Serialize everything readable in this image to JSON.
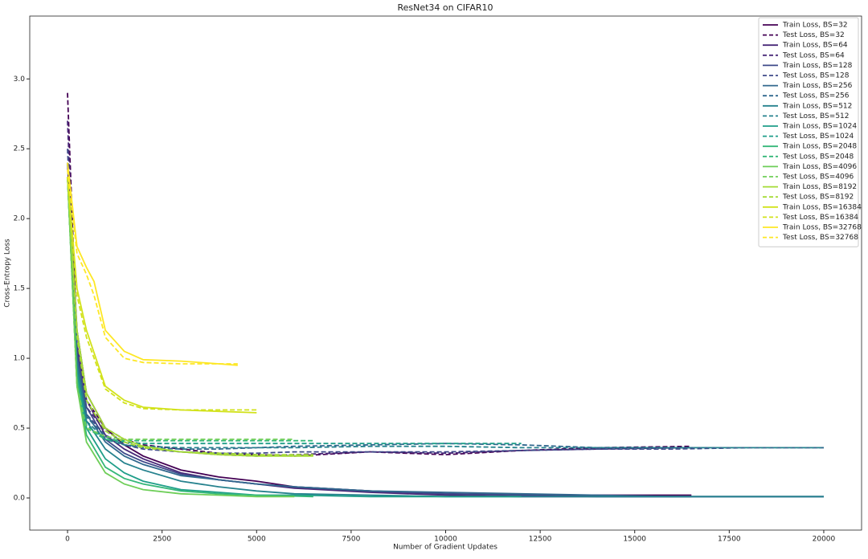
{
  "chart_data": {
    "type": "line",
    "title": "ResNet34 on CIFAR10",
    "x_label": "Number of Gradient Updates",
    "y_label": "Cross-Entropy Loss",
    "xlim": [
      -1000,
      21000
    ],
    "ylim": [
      -0.23,
      3.45
    ],
    "xticks": [
      0,
      2500,
      5000,
      7500,
      10000,
      12500,
      15000,
      17500,
      20000
    ],
    "yticks": [
      {
        "value": 0,
        "label": "0.0"
      },
      0.5,
      {
        "value": 1,
        "label": "1.0"
      },
      1.5,
      {
        "value": 2,
        "label": "2.0"
      },
      2.5,
      {
        "value": 3,
        "label": "3.0"
      }
    ],
    "grid": false,
    "legend": "upper right",
    "series": [
      {
        "name": "Train Loss, BS=32",
        "color": "#440154",
        "linestyle": "solid",
        "x": [
          0,
          250,
          500,
          1000,
          1500,
          2000,
          3000,
          4000,
          5000,
          6000,
          8000,
          10000,
          12000,
          14000,
          16500
        ],
        "values": [
          2.4,
          1.2,
          0.75,
          0.5,
          0.38,
          0.3,
          0.2,
          0.15,
          0.12,
          0.08,
          0.05,
          0.03,
          0.02,
          0.02,
          0.02
        ]
      },
      {
        "name": "Test Loss, BS=32",
        "color": "#440154",
        "linestyle": "dashed",
        "x": [
          0,
          250,
          500,
          1000,
          1500,
          2000,
          3000,
          4000,
          5000,
          6000,
          8000,
          10000,
          12000,
          14000,
          16500
        ],
        "values": [
          2.9,
          1.1,
          0.7,
          0.5,
          0.42,
          0.38,
          0.35,
          0.32,
          0.31,
          0.3,
          0.33,
          0.31,
          0.34,
          0.36,
          0.37
        ]
      },
      {
        "name": "Train Loss, BS=64",
        "color": "#482878",
        "linestyle": "solid",
        "x": [
          0,
          250,
          500,
          1000,
          1500,
          2000,
          3000,
          4000,
          5000,
          6000,
          8000,
          10000,
          12000,
          14000,
          16500
        ],
        "values": [
          2.3,
          1.1,
          0.7,
          0.45,
          0.35,
          0.28,
          0.18,
          0.13,
          0.1,
          0.07,
          0.04,
          0.02,
          0.01,
          0.01,
          0.01
        ]
      },
      {
        "name": "Test Loss, BS=64",
        "color": "#482878",
        "linestyle": "dashed",
        "x": [
          0,
          250,
          500,
          1000,
          1500,
          2000,
          3000,
          4000,
          5000,
          6000,
          8000,
          10000,
          12000,
          14000,
          16500
        ],
        "values": [
          2.7,
          1.0,
          0.65,
          0.48,
          0.4,
          0.36,
          0.33,
          0.31,
          0.3,
          0.31,
          0.33,
          0.32,
          0.34,
          0.35,
          0.36
        ]
      },
      {
        "name": "Train Loss, BS=128",
        "color": "#3e4989",
        "linestyle": "solid",
        "x": [
          0,
          250,
          500,
          1000,
          1500,
          2000,
          3000,
          4000,
          5000,
          6000,
          8000,
          10000,
          12000,
          14000,
          16000,
          18000,
          20000
        ],
        "values": [
          2.3,
          1.05,
          0.65,
          0.42,
          0.32,
          0.26,
          0.17,
          0.13,
          0.1,
          0.08,
          0.05,
          0.03,
          0.02,
          0.01,
          0.01,
          0.01,
          0.01
        ]
      },
      {
        "name": "Test Loss, BS=128",
        "color": "#3e4989",
        "linestyle": "dashed",
        "x": [
          0,
          250,
          500,
          1000,
          1500,
          2000,
          3000,
          4000,
          5000,
          6000,
          8000,
          10000,
          12000,
          14000,
          16000,
          18000,
          20000
        ],
        "values": [
          2.5,
          1.0,
          0.6,
          0.45,
          0.38,
          0.35,
          0.33,
          0.32,
          0.32,
          0.33,
          0.33,
          0.33,
          0.34,
          0.35,
          0.35,
          0.36,
          0.36
        ]
      },
      {
        "name": "Train Loss, BS=256",
        "color": "#31688e",
        "linestyle": "solid",
        "x": [
          0,
          250,
          500,
          1000,
          1500,
          2000,
          3000,
          4000,
          5000,
          6000,
          8000,
          10000,
          12000,
          14000,
          16000,
          18000,
          20000
        ],
        "values": [
          2.3,
          1.0,
          0.6,
          0.4,
          0.3,
          0.24,
          0.16,
          0.13,
          0.1,
          0.08,
          0.05,
          0.04,
          0.03,
          0.02,
          0.01,
          0.01,
          0.01
        ]
      },
      {
        "name": "Test Loss, BS=256",
        "color": "#31688e",
        "linestyle": "dashed",
        "x": [
          0,
          250,
          500,
          1000,
          1500,
          2000,
          3000,
          4000,
          5000,
          6000,
          8000,
          10000,
          12000,
          14000,
          16000,
          18000,
          20000
        ],
        "values": [
          2.4,
          0.95,
          0.58,
          0.44,
          0.38,
          0.36,
          0.35,
          0.35,
          0.36,
          0.37,
          0.38,
          0.39,
          0.38,
          0.36,
          0.36,
          0.36,
          0.36
        ]
      },
      {
        "name": "Train Loss, BS=512",
        "color": "#26828e",
        "linestyle": "solid",
        "x": [
          0,
          250,
          500,
          1000,
          1500,
          2000,
          3000,
          4000,
          5000,
          6000,
          8000,
          10000,
          12000,
          14000,
          16000,
          18000,
          20000
        ],
        "values": [
          2.3,
          0.95,
          0.55,
          0.35,
          0.25,
          0.2,
          0.12,
          0.08,
          0.05,
          0.03,
          0.02,
          0.01,
          0.01,
          0.01,
          0.01,
          0.01,
          0.01
        ]
      },
      {
        "name": "Test Loss, BS=512",
        "color": "#26828e",
        "linestyle": "dashed",
        "x": [
          0,
          250,
          500,
          1000,
          1500,
          2000,
          3000,
          4000,
          5000,
          6000,
          8000,
          10000,
          12000,
          14000,
          16000,
          18000,
          20000
        ],
        "values": [
          2.3,
          0.9,
          0.55,
          0.42,
          0.38,
          0.37,
          0.36,
          0.36,
          0.36,
          0.36,
          0.37,
          0.37,
          0.36,
          0.36,
          0.36,
          0.36,
          0.36
        ]
      },
      {
        "name": "Train Loss, BS=1024",
        "color": "#1f9e89",
        "linestyle": "solid",
        "x": [
          0,
          250,
          500,
          1000,
          1500,
          2000,
          3000,
          4000,
          5000,
          6000,
          8000,
          10000,
          12000
        ],
        "values": [
          2.3,
          0.9,
          0.5,
          0.28,
          0.18,
          0.12,
          0.06,
          0.04,
          0.02,
          0.02,
          0.01,
          0.01,
          0.01
        ]
      },
      {
        "name": "Test Loss, BS=1024",
        "color": "#1f9e89",
        "linestyle": "dashed",
        "x": [
          0,
          250,
          500,
          1000,
          1500,
          2000,
          3000,
          4000,
          5000,
          6000,
          8000,
          10000,
          12000
        ],
        "values": [
          2.3,
          0.85,
          0.52,
          0.42,
          0.4,
          0.39,
          0.39,
          0.39,
          0.39,
          0.39,
          0.39,
          0.39,
          0.39
        ]
      },
      {
        "name": "Train Loss, BS=2048",
        "color": "#35b779",
        "linestyle": "solid",
        "x": [
          0,
          250,
          500,
          1000,
          1500,
          2000,
          3000,
          4000,
          5000,
          6500
        ],
        "values": [
          2.3,
          0.85,
          0.45,
          0.22,
          0.14,
          0.1,
          0.05,
          0.03,
          0.02,
          0.01
        ]
      },
      {
        "name": "Test Loss, BS=2048",
        "color": "#35b779",
        "linestyle": "dashed",
        "x": [
          0,
          250,
          500,
          1000,
          1500,
          2000,
          3000,
          4000,
          5000,
          6500
        ],
        "values": [
          2.3,
          0.8,
          0.5,
          0.42,
          0.41,
          0.41,
          0.41,
          0.41,
          0.41,
          0.41
        ]
      },
      {
        "name": "Train Loss, BS=4096",
        "color": "#6ece58",
        "linestyle": "solid",
        "x": [
          0,
          250,
          500,
          1000,
          1500,
          2000,
          3000,
          4000,
          5000,
          6000
        ],
        "values": [
          2.3,
          0.8,
          0.4,
          0.18,
          0.1,
          0.06,
          0.03,
          0.02,
          0.01,
          0.01
        ]
      },
      {
        "name": "Test Loss, BS=4096",
        "color": "#6ece58",
        "linestyle": "dashed",
        "x": [
          0,
          250,
          500,
          1000,
          1500,
          2000,
          3000,
          4000,
          5000,
          6000
        ],
        "values": [
          2.3,
          0.8,
          0.5,
          0.44,
          0.42,
          0.42,
          0.42,
          0.42,
          0.42,
          0.42
        ]
      },
      {
        "name": "Train Loss, BS=8192",
        "color": "#a5db36",
        "linestyle": "solid",
        "x": [
          0,
          250,
          500,
          1000,
          1500,
          2000,
          3000,
          4000,
          5000,
          6500
        ],
        "values": [
          2.3,
          1.2,
          0.75,
          0.5,
          0.42,
          0.37,
          0.33,
          0.31,
          0.3,
          0.3
        ]
      },
      {
        "name": "Test Loss, BS=8192",
        "color": "#a5db36",
        "linestyle": "dashed",
        "x": [
          0,
          250,
          500,
          1000,
          1500,
          2000,
          3000,
          4000,
          5000,
          6500
        ],
        "values": [
          2.3,
          1.15,
          0.7,
          0.48,
          0.4,
          0.36,
          0.33,
          0.32,
          0.31,
          0.31
        ]
      },
      {
        "name": "Train Loss, BS=16384",
        "color": "#d2e21b",
        "linestyle": "solid",
        "x": [
          0,
          250,
          500,
          1000,
          1500,
          2000,
          3000,
          4000,
          5000
        ],
        "values": [
          2.3,
          1.5,
          1.2,
          0.8,
          0.7,
          0.65,
          0.63,
          0.62,
          0.61
        ]
      },
      {
        "name": "Test Loss, BS=16384",
        "color": "#d2e21b",
        "linestyle": "dashed",
        "x": [
          0,
          250,
          500,
          1000,
          1500,
          2000,
          3000,
          4000,
          5000
        ],
        "values": [
          2.3,
          1.45,
          1.15,
          0.78,
          0.68,
          0.64,
          0.63,
          0.63,
          0.63
        ]
      },
      {
        "name": "Train Loss, BS=32768",
        "color": "#fde725",
        "linestyle": "solid",
        "x": [
          0,
          250,
          500,
          700,
          1000,
          1500,
          2000,
          3000,
          4000,
          4500
        ],
        "values": [
          2.4,
          1.8,
          1.65,
          1.55,
          1.2,
          1.05,
          0.99,
          0.98,
          0.96,
          0.95
        ]
      },
      {
        "name": "Test Loss, BS=32768",
        "color": "#fde725",
        "linestyle": "dashed",
        "x": [
          0,
          250,
          500,
          700,
          1000,
          1500,
          2000,
          3000,
          4000,
          4500
        ],
        "values": [
          2.35,
          1.75,
          1.6,
          1.45,
          1.15,
          1.0,
          0.97,
          0.96,
          0.96,
          0.96
        ]
      }
    ]
  }
}
